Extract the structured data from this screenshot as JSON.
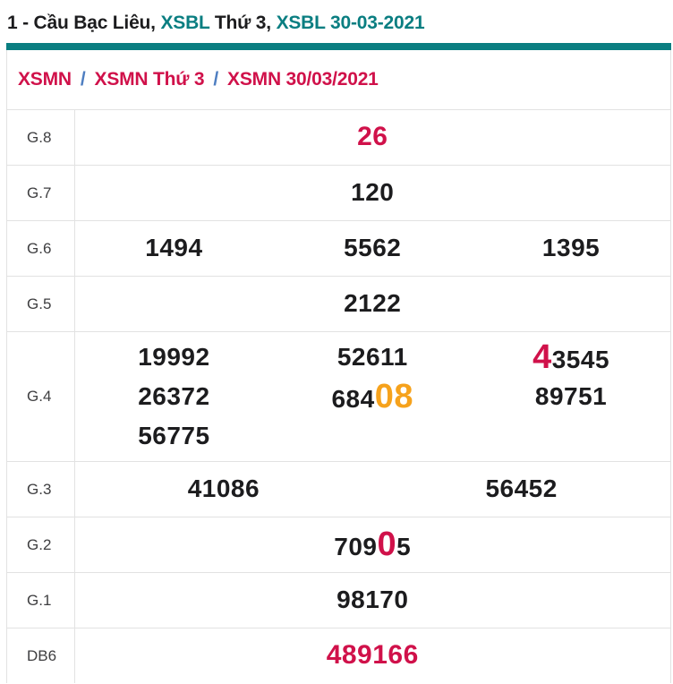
{
  "page": {
    "title": {
      "segments": [
        {
          "text": "1 - Cầu Bạc Liêu, ",
          "color": "dark"
        },
        {
          "text": "XSBL",
          "color": "teal"
        },
        {
          "text": " Thứ 3, ",
          "color": "dark"
        },
        {
          "text": "XSBL 30-03-2021",
          "color": "teal"
        }
      ]
    },
    "breadcrumb": {
      "separator": "/",
      "items": [
        "XSMN",
        "XSMN Thứ 3",
        "XSMN 30/03/2021"
      ]
    },
    "results": {
      "rows": [
        {
          "label": "G.8",
          "lines": [
            [
              [
                {
                  "t": "26",
                  "s": "red"
                }
              ]
            ]
          ]
        },
        {
          "label": "G.7",
          "lines": [
            [
              [
                {
                  "t": "120"
                }
              ]
            ]
          ]
        },
        {
          "label": "G.6",
          "lines": [
            [
              [
                {
                  "t": "1494"
                }
              ],
              [
                {
                  "t": "5562"
                }
              ],
              [
                {
                  "t": "1395"
                }
              ]
            ]
          ]
        },
        {
          "label": "G.5",
          "lines": [
            [
              [
                {
                  "t": "2122"
                }
              ]
            ]
          ]
        },
        {
          "label": "G.4",
          "lines": [
            [
              [
                {
                  "t": "19992"
                }
              ],
              [
                {
                  "t": "52611"
                }
              ],
              [
                {
                  "t": "4",
                  "s": "big-red"
                },
                {
                  "t": "3545"
                }
              ]
            ],
            [
              [
                {
                  "t": "26372"
                }
              ],
              [
                {
                  "t": "684"
                },
                {
                  "t": "08",
                  "s": "big-orange"
                }
              ],
              [
                {
                  "t": "89751"
                }
              ]
            ],
            [
              [
                {
                  "t": "56775"
                }
              ],
              [],
              []
            ]
          ]
        },
        {
          "label": "G.3",
          "lines": [
            [
              [
                {
                  "t": "41086"
                }
              ],
              [
                {
                  "t": "56452"
                }
              ]
            ]
          ]
        },
        {
          "label": "G.2",
          "lines": [
            [
              [
                {
                  "t": "709"
                },
                {
                  "t": "0",
                  "s": "big-red"
                },
                {
                  "t": "5"
                }
              ]
            ]
          ]
        },
        {
          "label": "G.1",
          "lines": [
            [
              [
                {
                  "t": "98170"
                }
              ]
            ]
          ]
        },
        {
          "label": "DB6",
          "lines": [
            [
              [
                {
                  "t": "489166",
                  "s": "red"
                }
              ]
            ]
          ]
        }
      ]
    },
    "colors": {
      "teal": "#0a7e81",
      "crimson": "#d0114a",
      "orange": "#f6a21c",
      "sep_blue": "#4e7ec1",
      "border": "#e2e2e2",
      "text_dark": "#1c1c1e",
      "label_gray": "#3e3e40"
    }
  }
}
